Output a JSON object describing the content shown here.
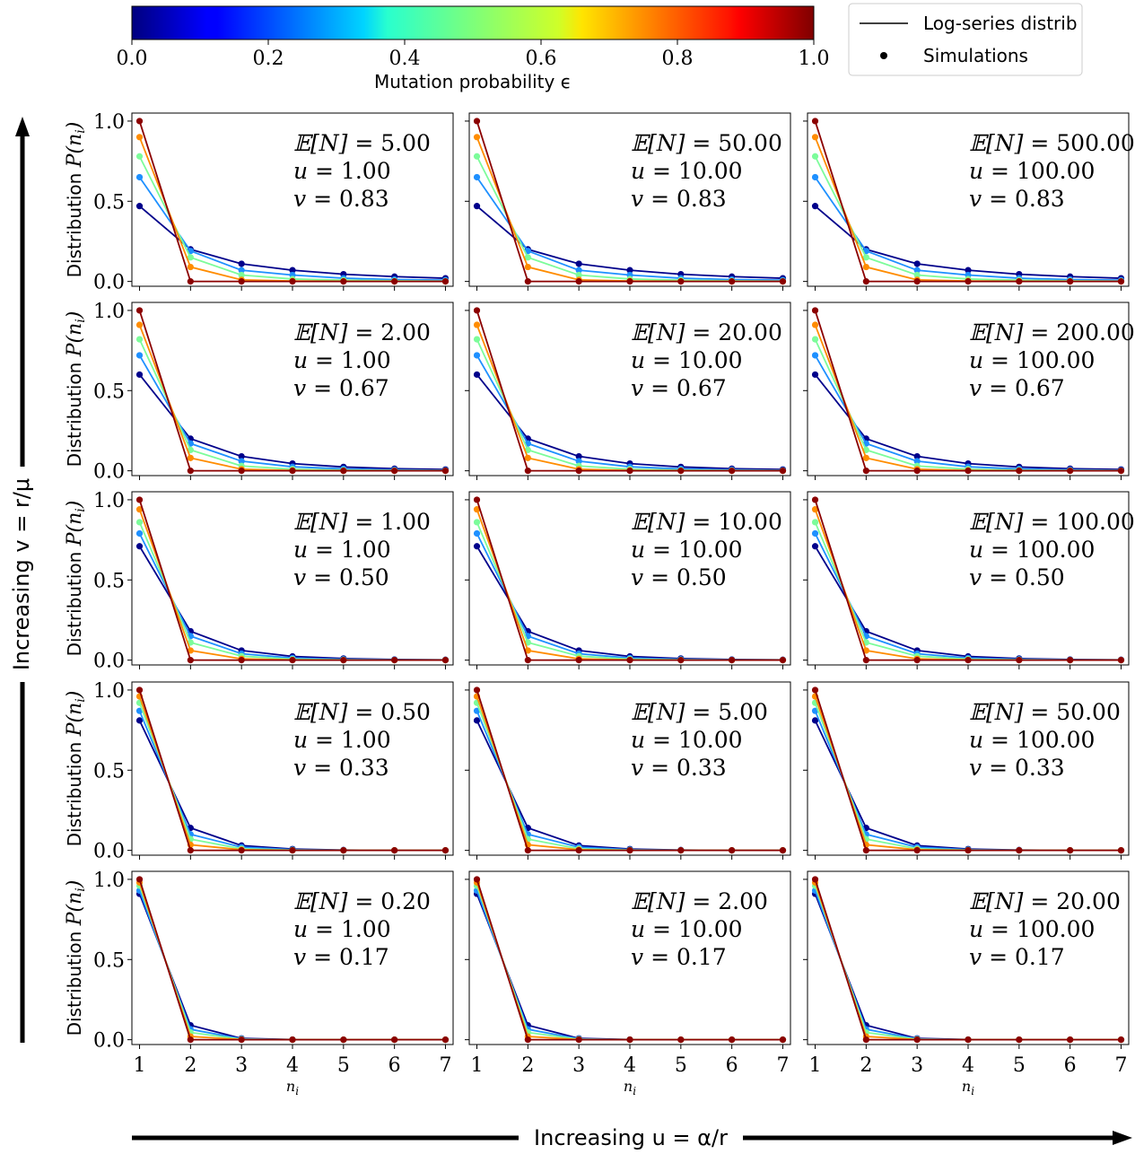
{
  "colorbar": {
    "label": "Mutation probability ϵ",
    "ticks": [
      "0.0",
      "0.2",
      "0.4",
      "0.6",
      "0.8",
      "1.0"
    ],
    "colormap": "jet"
  },
  "legend": {
    "line_label": "Log-series distrib",
    "marker_label": "Simulations"
  },
  "figure": {
    "left_arrow_label": "Increasing v = r/μ",
    "bottom_arrow_label": "Increasing u = α/r"
  },
  "chart_data": {
    "type": "line",
    "grid": "5x3 panels",
    "x": [
      1,
      2,
      3,
      4,
      5,
      6,
      7
    ],
    "xlabel": "n_i",
    "ylabel": "Distribution P(n_i)",
    "yticks": [
      "0.0",
      "0.5",
      "1.0"
    ],
    "xticks": [
      "1",
      "2",
      "3",
      "4",
      "5",
      "6",
      "7"
    ],
    "ylim": [
      -0.03,
      1.05
    ],
    "xlim": [
      0.85,
      7.15
    ],
    "epsilon_values": [
      0.0,
      0.25,
      0.5,
      0.75,
      1.0
    ],
    "series_colors": [
      "#00008b",
      "#1e90ff",
      "#7cfc9a",
      "#ff8c00",
      "#8b0000"
    ],
    "rows": [
      {
        "v": 0.83,
        "panels": [
          {
            "EN": "5.00",
            "u": "1.00",
            "v": "0.83"
          },
          {
            "EN": "50.00",
            "u": "10.00",
            "v": "0.83"
          },
          {
            "EN": "500.00",
            "u": "100.00",
            "v": "0.83"
          }
        ],
        "series": [
          {
            "epsilon": 0.0,
            "values": [
              0.47,
              0.2,
              0.11,
              0.07,
              0.045,
              0.03,
              0.02
            ]
          },
          {
            "epsilon": 0.25,
            "values": [
              0.65,
              0.19,
              0.07,
              0.04,
              0.02,
              0.012,
              0.008
            ]
          },
          {
            "epsilon": 0.5,
            "values": [
              0.78,
              0.15,
              0.04,
              0.015,
              0.008,
              0.004,
              0.002
            ]
          },
          {
            "epsilon": 0.75,
            "values": [
              0.9,
              0.09,
              0.01,
              0.003,
              0.001,
              0.0,
              0.0
            ]
          },
          {
            "epsilon": 1.0,
            "values": [
              1.0,
              0.0,
              0.0,
              0.0,
              0.0,
              0.0,
              0.0
            ]
          }
        ]
      },
      {
        "v": 0.67,
        "panels": [
          {
            "EN": "2.00",
            "u": "1.00",
            "v": "0.67"
          },
          {
            "EN": "20.00",
            "u": "10.00",
            "v": "0.67"
          },
          {
            "EN": "200.00",
            "u": "100.00",
            "v": "0.67"
          }
        ],
        "series": [
          {
            "epsilon": 0.0,
            "values": [
              0.6,
              0.2,
              0.09,
              0.045,
              0.024,
              0.013,
              0.008
            ]
          },
          {
            "epsilon": 0.25,
            "values": [
              0.72,
              0.17,
              0.06,
              0.025,
              0.012,
              0.006,
              0.003
            ]
          },
          {
            "epsilon": 0.5,
            "values": [
              0.82,
              0.13,
              0.03,
              0.01,
              0.004,
              0.002,
              0.001
            ]
          },
          {
            "epsilon": 0.75,
            "values": [
              0.91,
              0.08,
              0.01,
              0.002,
              0.0,
              0.0,
              0.0
            ]
          },
          {
            "epsilon": 1.0,
            "values": [
              1.0,
              0.0,
              0.0,
              0.0,
              0.0,
              0.0,
              0.0
            ]
          }
        ]
      },
      {
        "v": 0.5,
        "panels": [
          {
            "EN": "1.00",
            "u": "1.00",
            "v": "0.50"
          },
          {
            "EN": "10.00",
            "u": "10.00",
            "v": "0.50"
          },
          {
            "EN": "100.00",
            "u": "100.00",
            "v": "0.50"
          }
        ],
        "series": [
          {
            "epsilon": 0.0,
            "values": [
              0.71,
              0.18,
              0.06,
              0.023,
              0.01,
              0.004,
              0.002
            ]
          },
          {
            "epsilon": 0.25,
            "values": [
              0.79,
              0.15,
              0.04,
              0.013,
              0.005,
              0.002,
              0.001
            ]
          },
          {
            "epsilon": 0.5,
            "values": [
              0.86,
              0.11,
              0.025,
              0.006,
              0.002,
              0.0,
              0.0
            ]
          },
          {
            "epsilon": 0.75,
            "values": [
              0.94,
              0.06,
              0.008,
              0.001,
              0.0,
              0.0,
              0.0
            ]
          },
          {
            "epsilon": 1.0,
            "values": [
              1.0,
              0.0,
              0.0,
              0.0,
              0.0,
              0.0,
              0.0
            ]
          }
        ]
      },
      {
        "v": 0.33,
        "panels": [
          {
            "EN": "0.50",
            "u": "1.00",
            "v": "0.33"
          },
          {
            "EN": "5.00",
            "u": "10.00",
            "v": "0.33"
          },
          {
            "EN": "50.00",
            "u": "100.00",
            "v": "0.33"
          }
        ],
        "series": [
          {
            "epsilon": 0.0,
            "values": [
              0.81,
              0.14,
              0.03,
              0.008,
              0.002,
              0.0,
              0.0
            ]
          },
          {
            "epsilon": 0.25,
            "values": [
              0.87,
              0.1,
              0.02,
              0.004,
              0.001,
              0.0,
              0.0
            ]
          },
          {
            "epsilon": 0.5,
            "values": [
              0.92,
              0.07,
              0.01,
              0.002,
              0.0,
              0.0,
              0.0
            ]
          },
          {
            "epsilon": 0.75,
            "values": [
              0.96,
              0.035,
              0.004,
              0.0,
              0.0,
              0.0,
              0.0
            ]
          },
          {
            "epsilon": 1.0,
            "values": [
              1.0,
              0.0,
              0.0,
              0.0,
              0.0,
              0.0,
              0.0
            ]
          }
        ]
      },
      {
        "v": 0.17,
        "panels": [
          {
            "EN": "0.20",
            "u": "1.00",
            "v": "0.17"
          },
          {
            "EN": "2.00",
            "u": "10.00",
            "v": "0.17"
          },
          {
            "EN": "20.00",
            "u": "100.00",
            "v": "0.17"
          }
        ],
        "series": [
          {
            "epsilon": 0.0,
            "values": [
              0.91,
              0.09,
              0.008,
              0.001,
              0.0,
              0.0,
              0.0
            ]
          },
          {
            "epsilon": 0.25,
            "values": [
              0.93,
              0.065,
              0.005,
              0.0,
              0.0,
              0.0,
              0.0
            ]
          },
          {
            "epsilon": 0.5,
            "values": [
              0.96,
              0.045,
              0.003,
              0.0,
              0.0,
              0.0,
              0.0
            ]
          },
          {
            "epsilon": 0.75,
            "values": [
              0.98,
              0.02,
              0.001,
              0.0,
              0.0,
              0.0,
              0.0
            ]
          },
          {
            "epsilon": 1.0,
            "values": [
              1.0,
              0.0,
              0.0,
              0.0,
              0.0,
              0.0,
              0.0
            ]
          }
        ]
      }
    ]
  }
}
